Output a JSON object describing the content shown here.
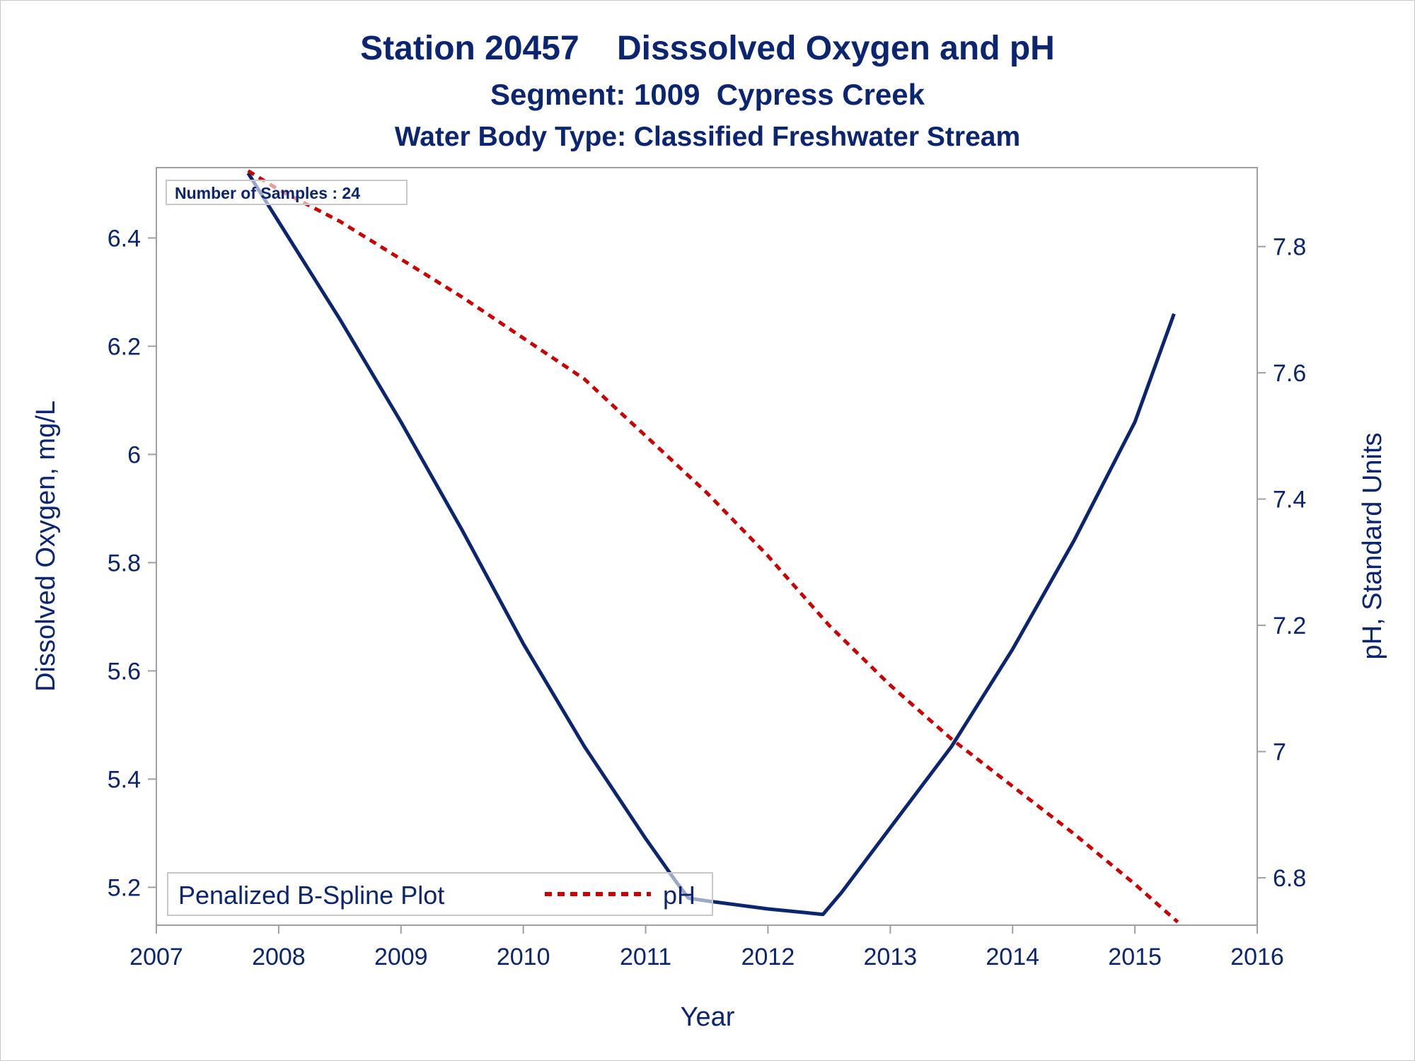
{
  "chart_data": {
    "type": "line",
    "title": "Station 20457    Disssolved Oxygen and pH",
    "subtitle": "Segment: 1009  Cypress Creek",
    "subtitle2": "Water Body Type: Classified Freshwater Stream",
    "xlabel": "Year",
    "ylabel": "Dissolved Oxygen, mg/L",
    "y2label": "pH, Standard Units",
    "xlim": [
      2007,
      2016
    ],
    "ylim": [
      5.13,
      6.53
    ],
    "y2lim": [
      6.725,
      7.925
    ],
    "xticks": [
      "2007",
      "2008",
      "2009",
      "2010",
      "2011",
      "2012",
      "2013",
      "2014",
      "2015",
      "2016"
    ],
    "yticks": [
      "5.2",
      "5.4",
      "5.6",
      "5.8",
      "6",
      "6.2",
      "6.4"
    ],
    "y2ticks": [
      "6.8",
      "7",
      "7.2",
      "7.4",
      "7.6",
      "7.8"
    ],
    "inset_label": "Number of Samples : 24",
    "legend_position": "bottom-left",
    "legend_title": "Penalized B-Spline Plot",
    "series": [
      {
        "label": "",
        "axis": "left",
        "style": "solid",
        "color": "#0c2571",
        "x": [
          2007.75,
          2008.0,
          2008.5,
          2009.0,
          2009.5,
          2010.0,
          2010.5,
          2011.0,
          2011.25,
          2011.35,
          2011.5,
          2012.0,
          2012.45,
          2012.6,
          2013.0,
          2013.5,
          2014.0,
          2014.5,
          2015.0,
          2015.32
        ],
        "y": [
          6.52,
          6.43,
          6.25,
          6.06,
          5.86,
          5.65,
          5.46,
          5.29,
          5.21,
          5.18,
          5.175,
          5.16,
          5.15,
          5.19,
          5.31,
          5.46,
          5.64,
          5.84,
          6.06,
          6.26
        ]
      },
      {
        "label": "pH",
        "axis": "right",
        "style": "dashed",
        "color": "#cc0000",
        "x": [
          2007.75,
          2008.0,
          2008.5,
          2009.0,
          2009.5,
          2010.0,
          2010.5,
          2011.0,
          2011.5,
          2012.0,
          2012.5,
          2013.0,
          2013.5,
          2014.0,
          2014.5,
          2015.0,
          2015.35
        ],
        "y": [
          7.92,
          7.89,
          7.84,
          7.78,
          7.72,
          7.655,
          7.59,
          7.5,
          7.41,
          7.31,
          7.2,
          7.105,
          7.02,
          6.945,
          6.87,
          6.79,
          6.73
        ]
      }
    ],
    "colors": {
      "do": "#0c2571",
      "ph": "#cc0000",
      "text": "#0c2571",
      "frame": "#a0a0a0"
    }
  }
}
